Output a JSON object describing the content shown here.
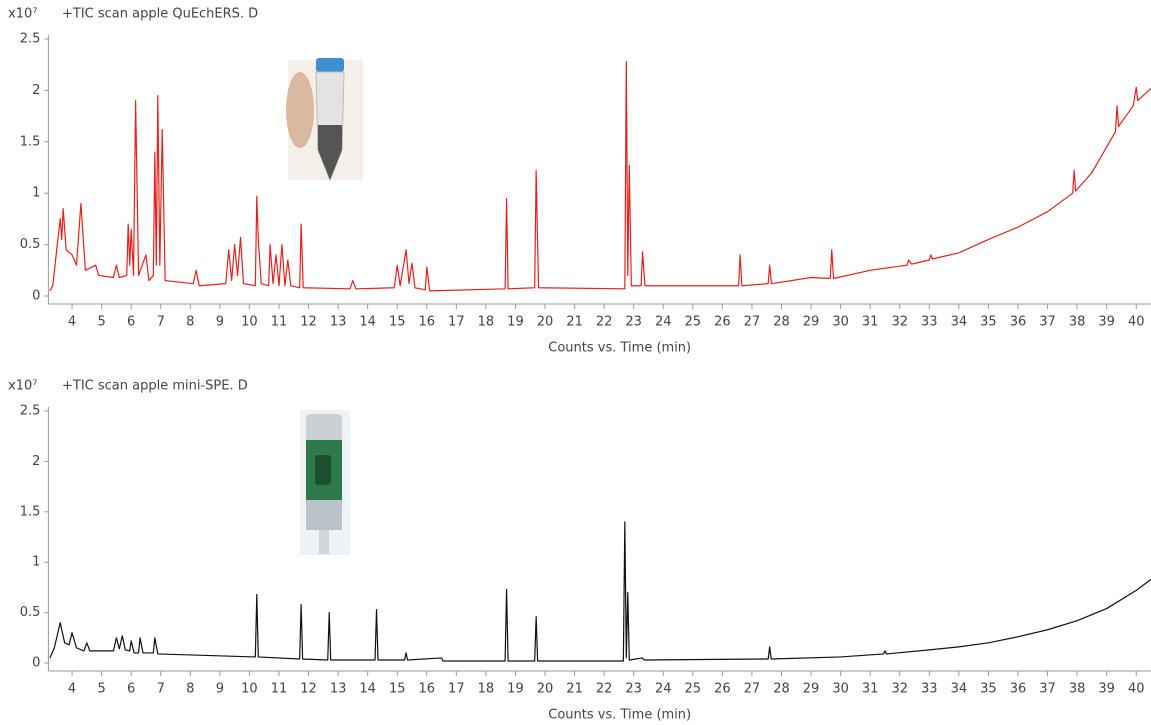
{
  "chart_data": [
    {
      "type": "line",
      "title": "+TIC scan apple QuEchERS. D",
      "y_multiplier": "x10⁷",
      "xlabel": "Counts vs. Time (min)",
      "xlim": [
        3.2,
        40.5
      ],
      "ylim": [
        0,
        2.5
      ],
      "xticks": [
        4,
        5,
        6,
        7,
        8,
        9,
        10,
        11,
        12,
        13,
        14,
        15,
        16,
        17,
        18,
        19,
        20,
        21,
        22,
        23,
        24,
        25,
        26,
        27,
        28,
        29,
        30,
        31,
        32,
        33,
        34,
        35,
        36,
        37,
        38,
        39,
        40
      ],
      "yticks": [
        0,
        0.5,
        1,
        1.5,
        2,
        2.5
      ],
      "series": [
        {
          "color": "#e8201c",
          "x": [
            3.25,
            3.35,
            3.5,
            3.6,
            3.65,
            3.7,
            3.8,
            4.0,
            4.15,
            4.3,
            4.45,
            4.8,
            4.9,
            5.4,
            5.5,
            5.6,
            5.85,
            5.9,
            5.95,
            6.0,
            6.08,
            6.15,
            6.25,
            6.5,
            6.6,
            6.75,
            6.8,
            6.85,
            6.9,
            6.97,
            7.05,
            7.15,
            8.1,
            8.2,
            8.3,
            9.2,
            9.3,
            9.4,
            9.5,
            9.6,
            9.7,
            9.8,
            10.2,
            10.25,
            10.3,
            10.4,
            10.65,
            10.7,
            10.8,
            10.9,
            11.0,
            11.1,
            11.2,
            11.3,
            11.4,
            11.7,
            11.75,
            11.82,
            13.4,
            13.5,
            13.6,
            14.9,
            15.0,
            15.1,
            15.3,
            15.4,
            15.5,
            15.6,
            15.95,
            16.0,
            16.1,
            18.65,
            18.7,
            18.75,
            19.65,
            19.7,
            19.78,
            22.7,
            22.75,
            22.8,
            22.85,
            22.92,
            23.25,
            23.3,
            23.38,
            26.55,
            26.6,
            26.66,
            27.55,
            27.6,
            27.66,
            29.0,
            29.65,
            29.7,
            29.76,
            31.0,
            32.25,
            32.3,
            32.4,
            33.0,
            33.05,
            33.1,
            34.0,
            35.0,
            36.0,
            37.0,
            37.85,
            37.9,
            37.95,
            38.5,
            39.0,
            39.3,
            39.35,
            39.4,
            39.9,
            40.0,
            40.05,
            40.5
          ],
          "values": [
            0.05,
            0.1,
            0.5,
            0.75,
            0.55,
            0.85,
            0.45,
            0.4,
            0.3,
            0.9,
            0.25,
            0.3,
            0.2,
            0.18,
            0.3,
            0.18,
            0.2,
            0.7,
            0.3,
            0.65,
            0.2,
            1.9,
            0.2,
            0.4,
            0.15,
            0.2,
            1.4,
            0.3,
            1.95,
            0.3,
            1.62,
            0.15,
            0.12,
            0.25,
            0.1,
            0.12,
            0.45,
            0.15,
            0.5,
            0.2,
            0.57,
            0.12,
            0.1,
            0.97,
            0.55,
            0.12,
            0.1,
            0.5,
            0.12,
            0.4,
            0.1,
            0.5,
            0.1,
            0.35,
            0.1,
            0.08,
            0.7,
            0.08,
            0.07,
            0.15,
            0.07,
            0.08,
            0.3,
            0.1,
            0.45,
            0.12,
            0.32,
            0.08,
            0.06,
            0.28,
            0.05,
            0.07,
            0.95,
            0.07,
            0.08,
            1.22,
            0.08,
            0.07,
            2.28,
            0.2,
            1.27,
            0.1,
            0.1,
            0.43,
            0.1,
            0.1,
            0.4,
            0.1,
            0.12,
            0.3,
            0.12,
            0.18,
            0.17,
            0.45,
            0.17,
            0.25,
            0.3,
            0.35,
            0.31,
            0.35,
            0.4,
            0.36,
            0.42,
            0.55,
            0.67,
            0.82,
            1.0,
            1.22,
            1.02,
            1.2,
            1.45,
            1.6,
            1.85,
            1.65,
            1.85,
            2.03,
            1.9,
            2.02
          ]
        }
      ]
    },
    {
      "type": "line",
      "title": "+TIC scan apple mini-SPE. D",
      "y_multiplier": "x10⁷",
      "xlabel": "Counts vs. Time (min)",
      "xlim": [
        3.2,
        40.5
      ],
      "ylim": [
        0,
        2.5
      ],
      "xticks": [
        4,
        5,
        6,
        7,
        8,
        9,
        10,
        11,
        12,
        13,
        14,
        15,
        16,
        17,
        18,
        19,
        20,
        21,
        22,
        23,
        24,
        25,
        26,
        27,
        28,
        29,
        30,
        31,
        32,
        33,
        34,
        35,
        36,
        37,
        38,
        39,
        40
      ],
      "yticks": [
        0,
        0.5,
        1,
        1.5,
        2,
        2.5
      ],
      "series": [
        {
          "color": "#111111",
          "x": [
            3.25,
            3.4,
            3.6,
            3.75,
            3.9,
            4.0,
            4.15,
            4.4,
            4.5,
            4.6,
            5.4,
            5.5,
            5.6,
            5.7,
            5.8,
            5.95,
            6.0,
            6.1,
            6.25,
            6.3,
            6.4,
            6.75,
            6.8,
            6.9,
            8.0,
            10.2,
            10.25,
            10.3,
            11.7,
            11.75,
            11.8,
            12.65,
            12.7,
            12.75,
            14.25,
            14.3,
            14.35,
            15.25,
            15.3,
            15.35,
            16.5,
            16.55,
            18.65,
            18.7,
            18.75,
            19.65,
            19.7,
            19.75,
            22.65,
            22.7,
            22.75,
            22.8,
            22.85,
            23.3,
            23.35,
            27.55,
            27.6,
            27.65,
            30.0,
            31.45,
            31.5,
            31.55,
            33.0,
            34.0,
            35.0,
            36.0,
            37.0,
            38.0,
            39.0,
            40.0,
            40.5
          ],
          "values": [
            0.05,
            0.15,
            0.4,
            0.2,
            0.18,
            0.3,
            0.15,
            0.12,
            0.2,
            0.12,
            0.12,
            0.25,
            0.14,
            0.27,
            0.13,
            0.12,
            0.22,
            0.1,
            0.1,
            0.25,
            0.1,
            0.1,
            0.25,
            0.09,
            0.08,
            0.06,
            0.68,
            0.06,
            0.04,
            0.58,
            0.04,
            0.03,
            0.5,
            0.03,
            0.03,
            0.53,
            0.03,
            0.03,
            0.1,
            0.03,
            0.05,
            0.02,
            0.02,
            0.73,
            0.02,
            0.02,
            0.46,
            0.02,
            0.02,
            1.4,
            0.05,
            0.7,
            0.03,
            0.05,
            0.03,
            0.04,
            0.16,
            0.04,
            0.06,
            0.09,
            0.12,
            0.09,
            0.13,
            0.16,
            0.2,
            0.26,
            0.33,
            0.42,
            0.54,
            0.72,
            0.83
          ]
        }
      ]
    }
  ]
}
